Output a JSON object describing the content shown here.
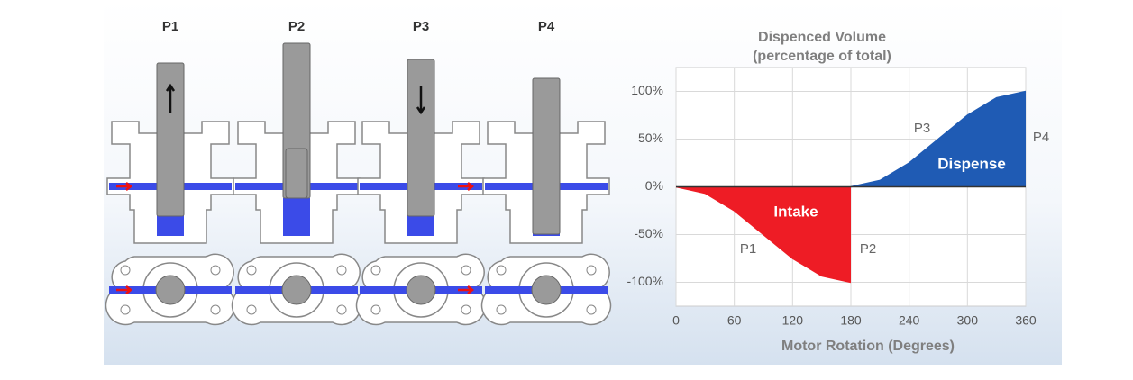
{
  "diagram": {
    "stages": [
      "P1",
      "P2",
      "P3",
      "P4"
    ]
  },
  "chart_data": {
    "type": "area",
    "title": "Dispenced Volume",
    "subtitle": "(percentage of total)",
    "x_label": "Motor Rotation (Degrees)",
    "xlim": [
      0,
      360
    ],
    "xticks": [
      0,
      60,
      120,
      180,
      240,
      300,
      360
    ],
    "ylim": [
      -125,
      125
    ],
    "yticks": [
      {
        "value": -100,
        "label": "-100%"
      },
      {
        "value": -50,
        "label": "-50%"
      },
      {
        "value": 0,
        "label": "0%"
      },
      {
        "value": 50,
        "label": "50%"
      },
      {
        "value": 100,
        "label": "100%"
      }
    ],
    "grid": true,
    "series": [
      {
        "name": "Intake",
        "color": "#ee1c25",
        "x": [
          0,
          30,
          60,
          90,
          120,
          150,
          180
        ],
        "values": [
          0,
          -6.7,
          -25,
          -50,
          -75,
          -93.3,
          -100
        ]
      },
      {
        "name": "Dispense",
        "color": "#1f5bb4",
        "x": [
          180,
          210,
          240,
          270,
          300,
          330,
          360
        ],
        "values": [
          0,
          6.7,
          25,
          50,
          75,
          93.3,
          100
        ]
      }
    ],
    "annotations": [
      "P1",
      "P2",
      "P3",
      "P4"
    ]
  }
}
